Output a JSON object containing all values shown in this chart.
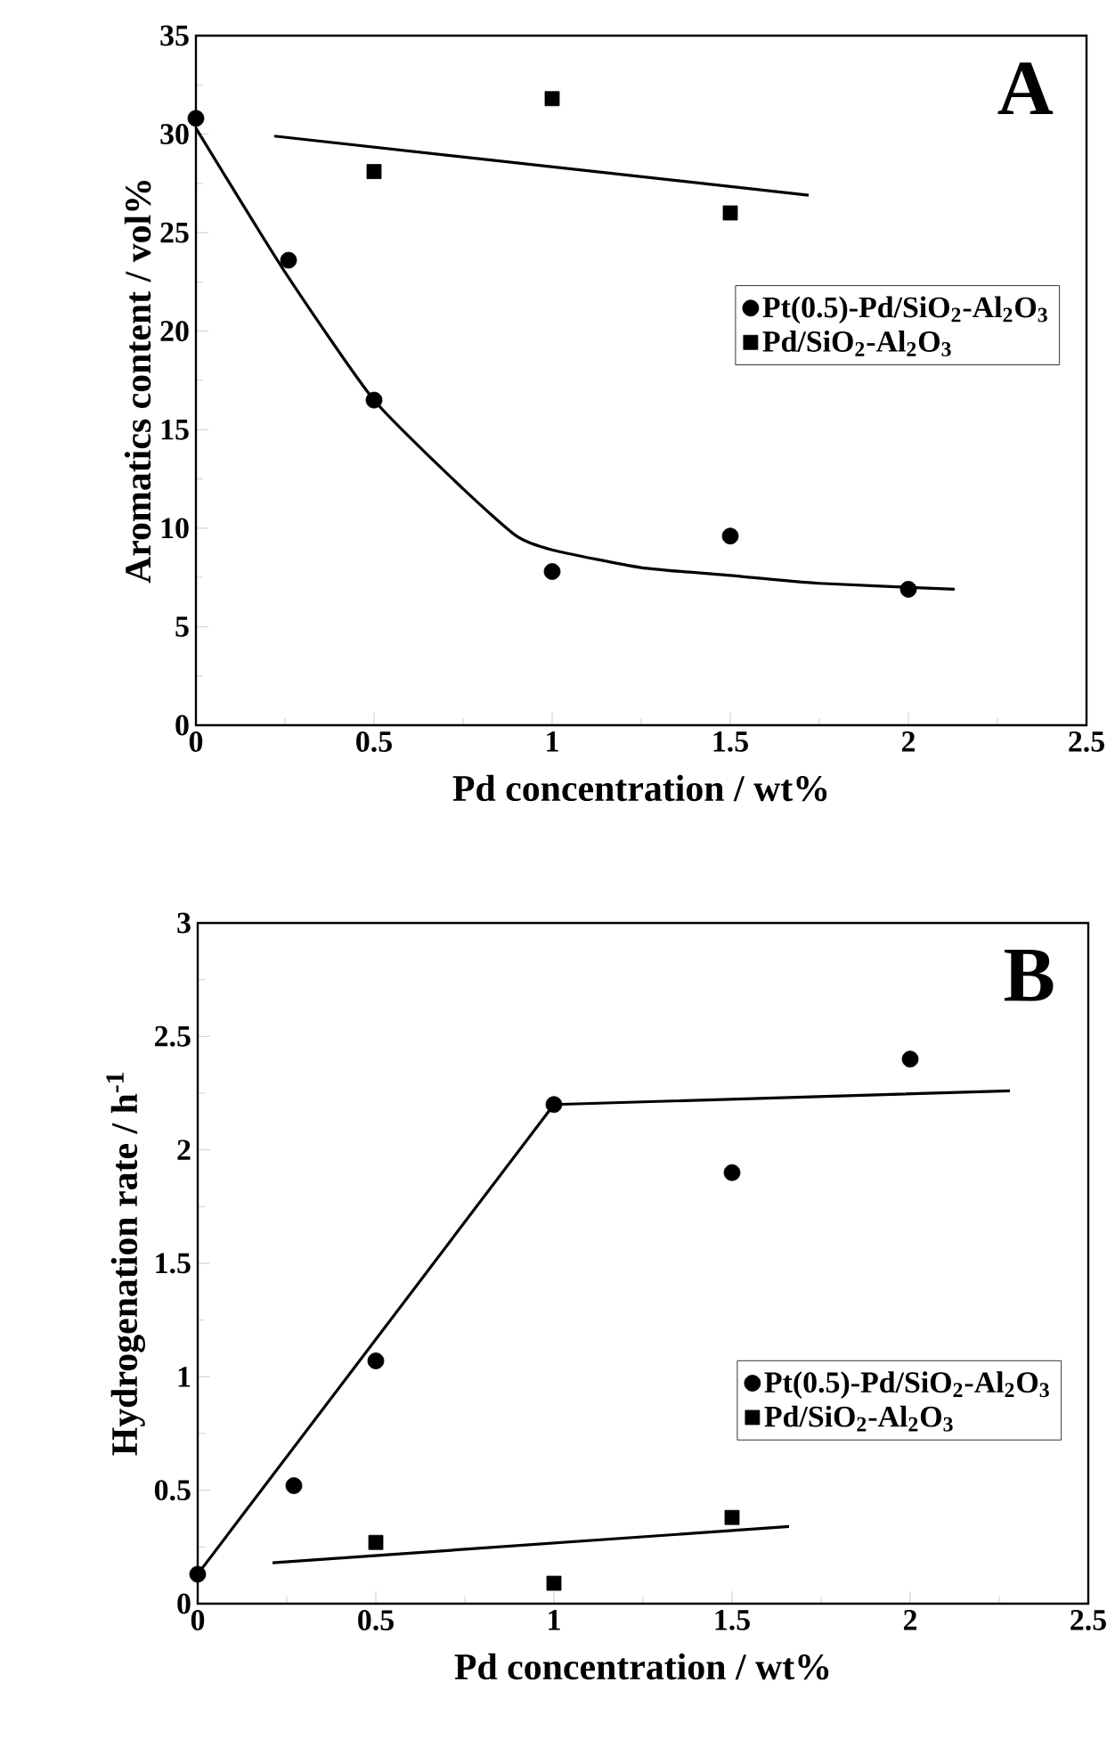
{
  "chart_data": [
    {
      "type": "scatter",
      "xlabel": "Pd concentration / wt%",
      "ylabel": "Aromatics content / vol%",
      "xlim": [
        0,
        2.5
      ],
      "ylim": [
        0,
        35
      ],
      "xticks": [
        0,
        0.5,
        1,
        1.5,
        2,
        2.5
      ],
      "yticks": [
        0,
        5,
        10,
        15,
        20,
        25,
        30,
        35
      ],
      "legend": "right",
      "grid": false,
      "annotations": [
        "A"
      ],
      "series": [
        {
          "name": "Pt(0.5)-Pd/SiO$_{2}$-Al$_{2}$O$_{3}$",
          "marker": "circle",
          "color": "#000000",
          "x": [
            0,
            0.26,
            0.5,
            1,
            1.5,
            2
          ],
          "values": [
            30.8,
            23.6,
            16.5,
            7.8,
            9.6,
            6.9
          ]
        },
        {
          "name": "Pd/SiO$_{2}$-Al$_{2}$O$_{3}$",
          "marker": "square",
          "color": "#000000",
          "x": [
            0.5,
            1,
            1.5
          ],
          "values": [
            28.1,
            31.8,
            26.0
          ]
        },
        {
          "type": "line",
          "marker": "none",
          "line_style": "solid",
          "color": "#000000",
          "x": [
            0,
            0.25,
            0.5,
            0.75,
            0.9,
            1,
            1.25,
            1.5,
            1.75,
            2.13
          ],
          "values": [
            30.3,
            23,
            16.5,
            12,
            9.6,
            8.9,
            8.0,
            7.6,
            7.2,
            6.9
          ]
        },
        {
          "type": "line",
          "marker": "none",
          "line_style": "solid",
          "color": "#000000",
          "x": [
            0.22,
            1.72
          ],
          "values": [
            29.9,
            26.9
          ]
        }
      ]
    },
    {
      "type": "scatter",
      "xlabel": "Pd concentration / wt%",
      "ylabel": "Hydrogenation rate / h$^{-1}$",
      "xlim": [
        0,
        2.5
      ],
      "ylim": [
        0,
        3
      ],
      "xticks": [
        0,
        0.5,
        1,
        1.5,
        2,
        2.5
      ],
      "yticks": [
        0,
        0.5,
        1,
        1.5,
        2,
        2.5,
        3
      ],
      "legend": "bottom right",
      "grid": false,
      "annotations": [
        "B"
      ],
      "series": [
        {
          "name": "Pt(0.5)-Pd/SiO$_{2}$-Al$_{2}$O$_{3}$",
          "marker": "circle",
          "color": "#000000",
          "x": [
            0,
            0.27,
            0.5,
            1,
            1.5,
            2
          ],
          "values": [
            0.13,
            0.52,
            1.07,
            2.2,
            1.9,
            2.4
          ]
        },
        {
          "name": "Pd/SiO$_{2}$-Al$_{2}$O$_{3}$",
          "marker": "square",
          "color": "#000000",
          "x": [
            0.5,
            1,
            1.5
          ],
          "values": [
            0.27,
            0.09,
            0.38
          ]
        },
        {
          "type": "line",
          "marker": "none",
          "line_style": "solid",
          "color": "#000000",
          "x": [
            0,
            1,
            2.28
          ],
          "values": [
            0.13,
            2.2,
            2.26
          ]
        },
        {
          "type": "line",
          "marker": "none",
          "line_style": "solid",
          "color": "#000000",
          "x": [
            0.21,
            1.66
          ],
          "values": [
            0.18,
            0.34
          ]
        }
      ]
    }
  ]
}
